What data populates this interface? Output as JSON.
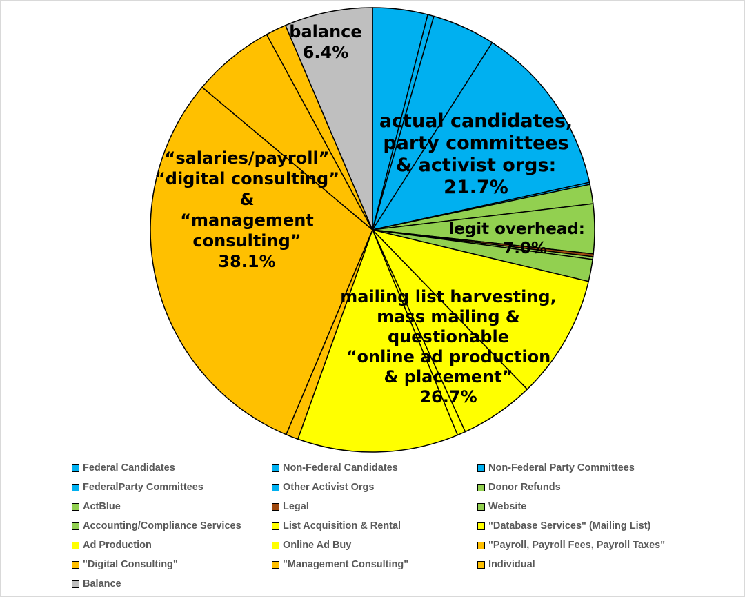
{
  "chart_data": {
    "type": "pie",
    "start": "top, clockwise",
    "slices": [
      {
        "name": "Federal Candidates",
        "value": 4.0,
        "color": "#00B0F0"
      },
      {
        "name": "Non-Federal Candidates",
        "value": 0.45,
        "color": "#00B0F0"
      },
      {
        "name": "Non-Federal Party Committees",
        "value": 4.6,
        "color": "#00B0F0"
      },
      {
        "name": "FederalParty Committees",
        "value": 12.5,
        "color": "#00B0F0"
      },
      {
        "name": "Other Activist Orgs",
        "value": 0.15,
        "color": "#00B0F0"
      },
      {
        "name": "Donor Refunds",
        "value": 1.4,
        "color": "#92D050"
      },
      {
        "name": "ActBlue",
        "value": 3.6,
        "color": "#92D050"
      },
      {
        "name": "Legal",
        "value": 0.2,
        "color": "#9E480E"
      },
      {
        "name": "Website",
        "value": 0.2,
        "color": "#92D050"
      },
      {
        "name": "Accounting/Compliance Services",
        "value": 1.6,
        "color": "#92D050"
      },
      {
        "name": "List Acquisition & Rental",
        "value": 9.0,
        "color": "#FFFF00"
      },
      {
        "name": "\"Database Services\" (Mailing List)",
        "value": 5.4,
        "color": "#FFFF00"
      },
      {
        "name": "Ad Production",
        "value": 0.6,
        "color": "#FFFF00"
      },
      {
        "name": "Online Ad Buy",
        "value": 11.7,
        "color": "#FFFF00"
      },
      {
        "name": "\"Payroll, Payroll Fees, Payroll Taxes\"",
        "value": 0.9,
        "color": "#FFC000"
      },
      {
        "name": "\"Digital Consulting\"",
        "value": 29.7,
        "color": "#FFC000"
      },
      {
        "name": "\"Management Consulting\"",
        "value": 6.0,
        "color": "#FFC000"
      },
      {
        "name": "Individual",
        "value": 1.5,
        "color": "#FFC000"
      },
      {
        "name": "Balance",
        "value": 6.4,
        "color": "#BFBFBF"
      }
    ],
    "annotations": {
      "balance": [
        "balance",
        "6.4%"
      ],
      "candidates": [
        "actual candidates,",
        "party committees",
        "& activist orgs:",
        "21.7%"
      ],
      "overhead": [
        "legit overhead:",
        "7.0%"
      ],
      "mailing": [
        "mailing list harvesting,",
        "mass mailing &",
        "questionable",
        "“online ad production",
        "& placement”",
        "26.7%"
      ],
      "salaries": [
        "“salaries/payroll”",
        "“digital consulting”",
        "&",
        "“management",
        "consulting”",
        "38.1%"
      ]
    },
    "legend_position": "bottom"
  }
}
